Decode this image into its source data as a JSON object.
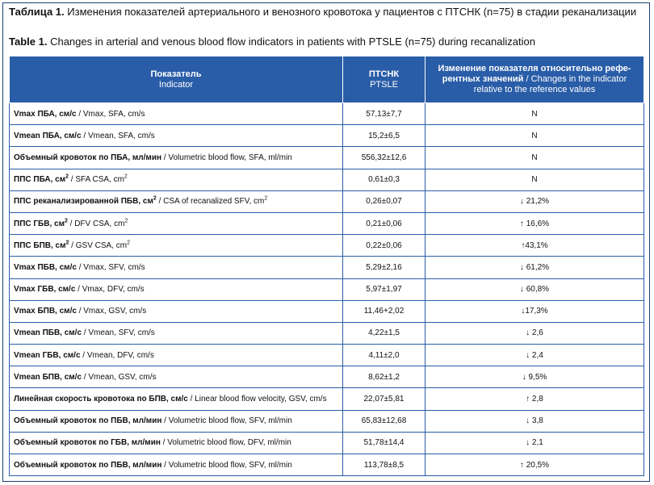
{
  "caption": {
    "ru_label": "Таблица 1.",
    "ru_text": "Изменения показателей артериального и венозного кровотока у пациентов с ПТСНК (n=75) в стадии реканализации",
    "en_label": "Table 1.",
    "en_text": "Changes in arterial and venous blood flow indicators in patients with PTSLE (n=75) during recanalization"
  },
  "header": {
    "col1_ru": "Показатель",
    "col1_en": "Indicator",
    "col2_ru": "ПТСНК",
    "col2_en": "PTSLE",
    "col3_ru": "Изменение показателя относительно рефе-рентных значений",
    "col3_en": "/ Changes in the indicator relative to the reference values"
  },
  "rows": [
    {
      "ru": "Vmax ПБА, см/с",
      "sup": "",
      "en": " / Vmax, SFA, cm/s",
      "sup2": "",
      "value": "57,13±7,7",
      "change": "N"
    },
    {
      "ru": "Vmean ПБА, см/с",
      "sup": "",
      "en": " / Vmean, SFA, cm/s",
      "sup2": "",
      "value": "15,2±6,5",
      "change": "N"
    },
    {
      "ru": "Объемный кровоток по ПБА, мл/мин",
      "sup": "",
      "en": " / Volumetric blood flow, SFA, ml/min",
      "sup2": "",
      "value": "556,32±12,6",
      "change": "N"
    },
    {
      "ru": "ППС ПБА, см",
      "sup": "2",
      "en": " / SFA CSA, cm",
      "sup2": "2",
      "value": "0,61±0,3",
      "change": "N"
    },
    {
      "ru": "ППС реканализированной ПБВ, см",
      "sup": "2",
      "en": " / CSA of recanalized SFV, cm",
      "sup2": "2",
      "value": "0,26±0,07",
      "change": "↓ 21,2%"
    },
    {
      "ru": "ППС ГБВ, см",
      "sup": "2",
      "en": " / DFV CSA, cm",
      "sup2": "2",
      "value": "0,21±0,06",
      "change": "↑ 16,6%"
    },
    {
      "ru": "ППС БПВ, см",
      "sup": "2",
      "en": " / GSV CSA, cm",
      "sup2": "2",
      "value": "0,22±0,06",
      "change": "↑43,1%"
    },
    {
      "ru": "Vmax ПБВ, см/с",
      "sup": "",
      "en": " / Vmax, SFV, cm/s",
      "sup2": "",
      "value": "5,29±2,16",
      "change": "↓ 61,2%"
    },
    {
      "ru": "Vmax ГБВ, см/с",
      "sup": "",
      "en": " / Vmax, DFV, cm/s",
      "sup2": "",
      "value": "5,97±1,97",
      "change": "↓ 60,8%"
    },
    {
      "ru": "Vmax БПВ, см/с",
      "sup": "",
      "en": " / Vmax, GSV, cm/s",
      "sup2": "",
      "value": "11,46+2,02",
      "change": "↓17,3%"
    },
    {
      "ru": "Vmean ПБВ, см/с",
      "sup": "",
      "en": " / Vmean, SFV, cm/s",
      "sup2": "",
      "value": "4,22±1,5",
      "change": "↓ 2,6"
    },
    {
      "ru": "Vmean ГБВ, см/с",
      "sup": "",
      "en": " / Vmean, DFV, cm/s",
      "sup2": "",
      "value": "4,11±2,0",
      "change": "↓ 2,4"
    },
    {
      "ru": "Vmean БПВ, см/с",
      "sup": "",
      "en": " / Vmean, GSV, cm/s",
      "sup2": "",
      "value": "8,62±1,2",
      "change": "↓ 9,5%"
    },
    {
      "ru": "Линейная скорость кровотока по БПВ, см/с",
      "sup": "",
      "en": " / Linear blood flow velocity, GSV, cm/s",
      "sup2": "",
      "value": "22,07±5,81",
      "change": "↑ 2,8"
    },
    {
      "ru": "Объемный кровоток по ПБВ, мл/мин",
      "sup": "",
      "en": " / Volumetric blood flow, SFV, ml/min",
      "sup2": "",
      "value": "65,83±12,68",
      "change": "↓ 3,8"
    },
    {
      "ru": "Объемный кровоток по ГБВ, мл/мин",
      "sup": "",
      "en": " / Volumetric blood flow, DFV, ml/min",
      "sup2": "",
      "value": "51,78±14,4",
      "change": "↓ 2,1"
    },
    {
      "ru": "Объемный кровоток по ПБВ, мл/мин",
      "sup": "",
      "en": " / Volumetric blood flow, SFV, ml/min",
      "sup2": "",
      "value": "113,78±8,5",
      "change": "↑ 20,5%"
    }
  ]
}
